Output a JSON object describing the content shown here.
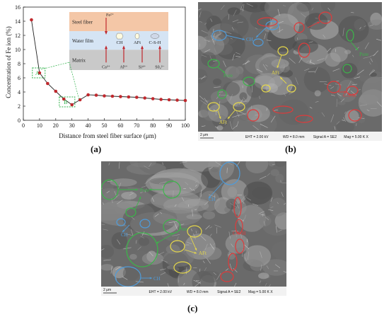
{
  "panels": {
    "a": {
      "label": "(a)"
    },
    "b": {
      "label": "(b)"
    },
    "c": {
      "label": "(c)"
    }
  },
  "chart_data": {
    "type": "line",
    "xlabel": "Distance from steel fiber surface (μm)",
    "ylabel": "Concentration of Fe ion (%)",
    "xlim": [
      0,
      100
    ],
    "ylim": [
      0,
      16
    ],
    "xticks": [
      0,
      10,
      20,
      30,
      40,
      50,
      60,
      70,
      80,
      90,
      100
    ],
    "yticks": [
      0,
      2,
      4,
      6,
      8,
      10,
      12,
      14,
      16
    ],
    "x": [
      5,
      10,
      15,
      20,
      25,
      30,
      35,
      40,
      45,
      50,
      55,
      60,
      65,
      70,
      75,
      80,
      85,
      90,
      95,
      100
    ],
    "y": [
      14.2,
      6.7,
      5.2,
      4.1,
      3.0,
      2.2,
      2.9,
      3.6,
      3.55,
      3.45,
      3.4,
      3.35,
      3.3,
      3.25,
      3.15,
      3.05,
      2.95,
      2.9,
      2.85,
      2.8
    ],
    "color": "#c0282d",
    "annotations": [
      {
        "label": "A",
        "x": 9.5,
        "y": 6.7
      },
      {
        "label": "B",
        "x": 27,
        "y": 2.6
      }
    ],
    "inset": {
      "layers": [
        "Steel fiber",
        "Water film",
        "Matrix"
      ],
      "layer_colors": [
        "#f4c7a7",
        "#d5e4f4",
        "#c9c9c9"
      ],
      "ions_top": "Fe²⁺",
      "ions_bottom": [
        "Ca²⁺",
        "Al³⁺",
        "Si⁴⁺",
        "S0₄²⁻"
      ],
      "products": [
        "CH",
        "AFt",
        "C-S-H"
      ]
    }
  },
  "sem_b": {
    "scale": "2 μm",
    "info": [
      "EHT = 2.00 kV",
      "WD = 8.0 mm",
      "Signal A = SE2",
      "Mag = 5.00 K X"
    ],
    "labels": [
      {
        "text": "CH",
        "color": "#4f9bd9"
      },
      {
        "text": "AFt",
        "color": "#e6d84a"
      },
      {
        "text": "Pore",
        "color": "#3cb54a"
      },
      {
        "text": "Pore",
        "color": "#3cb54a"
      },
      {
        "text": "AFt",
        "color": "#e6d84a"
      },
      {
        "text": "C-S-H",
        "color": "#e03a3a"
      }
    ]
  },
  "sem_c": {
    "scale": "2 μm",
    "info": [
      "EHT = 2.00 kV",
      "WD = 8.0 mm",
      "Signal A = SE2",
      "Mag = 5.00 K X"
    ],
    "labels": [
      {
        "text": "Pore",
        "color": "#3cb54a"
      },
      {
        "text": "CH",
        "color": "#4f9bd9"
      },
      {
        "text": "CH",
        "color": "#4f9bd9"
      },
      {
        "text": "Pore",
        "color": "#3cb54a"
      },
      {
        "text": "AFt",
        "color": "#e6d84a"
      },
      {
        "text": "CH",
        "color": "#4f9bd9"
      },
      {
        "text": "C-S-H",
        "color": "#e03a3a"
      }
    ]
  }
}
